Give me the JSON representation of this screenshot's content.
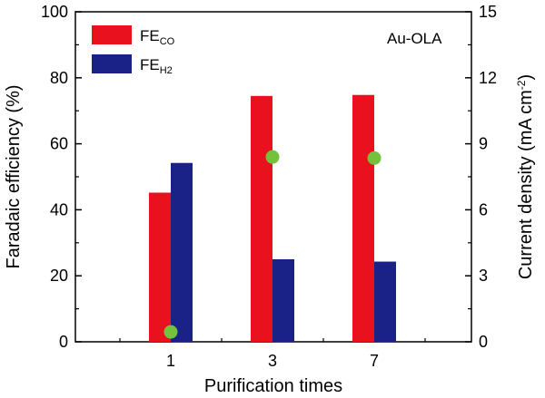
{
  "chart_data": {
    "type": "bar",
    "categories": [
      "1",
      "3",
      "7"
    ],
    "series": [
      {
        "name": "FE",
        "subscript": "CO",
        "color": "#e8111d",
        "axis": "left",
        "values": [
          45.2,
          74.5,
          74.8
        ]
      },
      {
        "name": "FE",
        "subscript": "H2",
        "color": "#1b2287",
        "axis": "left",
        "values": [
          54.2,
          25.0,
          24.3
        ]
      }
    ],
    "scatter": {
      "name": "Current density",
      "color": "#72c23b",
      "axis": "right",
      "values": [
        0.45,
        8.4,
        8.35
      ]
    },
    "xlabel": "Purification times",
    "ylabel": "Faradaic efficiency (%)",
    "ylabel_right": "Current density (mA cm",
    "ylabel_right_sup": "-2",
    "ylabel_right_close": ")",
    "ylim": [
      0,
      100
    ],
    "yticks": [
      "0",
      "20",
      "40",
      "60",
      "80",
      "100"
    ],
    "ylim_right": [
      0,
      15
    ],
    "yticks_right": [
      "0",
      "3",
      "6",
      "9",
      "12",
      "15"
    ],
    "annotation": "Au-OLA"
  }
}
